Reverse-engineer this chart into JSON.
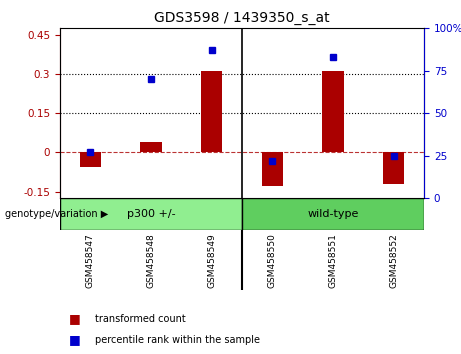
{
  "title": "GDS3598 / 1439350_s_at",
  "categories": [
    "GSM458547",
    "GSM458548",
    "GSM458549",
    "GSM458550",
    "GSM458551",
    "GSM458552"
  ],
  "transformed_count": [
    -0.055,
    0.04,
    0.31,
    -0.13,
    0.31,
    -0.12
  ],
  "percentile_rank": [
    27,
    70,
    87,
    22,
    83,
    25
  ],
  "bar_color": "#aa0000",
  "dot_color": "#0000cc",
  "ylim_left": [
    -0.175,
    0.475
  ],
  "ylim_right": [
    0,
    100
  ],
  "yticks_left": [
    -0.15,
    0.0,
    0.15,
    0.3,
    0.45
  ],
  "yticks_right": [
    0,
    25,
    50,
    75,
    100
  ],
  "dotted_lines": [
    0.15,
    0.3
  ],
  "group1_label": "p300 +/-",
  "group2_label": "wild-type",
  "group1_color": "#90ee90",
  "group2_color": "#5fce5f",
  "genotype_label": "genotype/variation",
  "xlabel_bg": "#c8c8c8",
  "legend_red": "transformed count",
  "legend_blue": "percentile rank within the sample",
  "title_fontsize": 10,
  "tick_fontsize": 7.5,
  "bar_width": 0.35
}
